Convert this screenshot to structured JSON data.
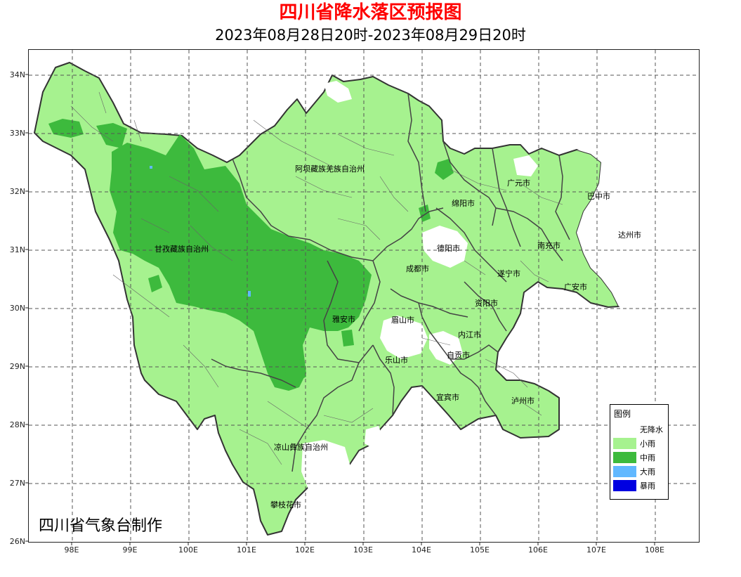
{
  "header": {
    "title": "四川省降水落区预报图",
    "subtitle": "2023年08月28日20时-2023年08月29日20时"
  },
  "axes": {
    "lat_ticks": [
      "34N",
      "33N",
      "32N",
      "31N",
      "30N",
      "29N",
      "28N",
      "27N",
      "26N"
    ],
    "lon_ticks": [
      "98E",
      "99E",
      "100E",
      "101E",
      "102E",
      "103E",
      "104E",
      "105E",
      "106E",
      "107E",
      "108E"
    ]
  },
  "cities": [
    "阿坝藏族羌族自治州",
    "甘孜藏族自治州",
    "广元市",
    "巴中市",
    "绵阳市",
    "达州市",
    "德阳市",
    "南充市",
    "成都市",
    "遂宁市",
    "广安市",
    "资阳市",
    "雅安市",
    "眉山市",
    "内江市",
    "自贡市",
    "乐山市",
    "宜宾市",
    "泸州市",
    "凉山彝族自治州",
    "攀枝花市"
  ],
  "legend": {
    "title": "图例",
    "items": [
      {
        "label": "无降水",
        "color": "#ffffff"
      },
      {
        "label": "小雨",
        "color": "#a6f28f"
      },
      {
        "label": "中雨",
        "color": "#3dba3d"
      },
      {
        "label": "大雨",
        "color": "#61b8ff"
      },
      {
        "label": "暴雨",
        "color": "#0000e1"
      }
    ]
  },
  "footer": {
    "maker": "四川省气象台制作"
  },
  "map": {
    "light_rain_color": "#a6f28f",
    "moderate_rain_color": "#3dba3d",
    "heavy_rain_color": "#61b8ff",
    "storm_color": "#0000e1",
    "border_color": "#333333"
  }
}
